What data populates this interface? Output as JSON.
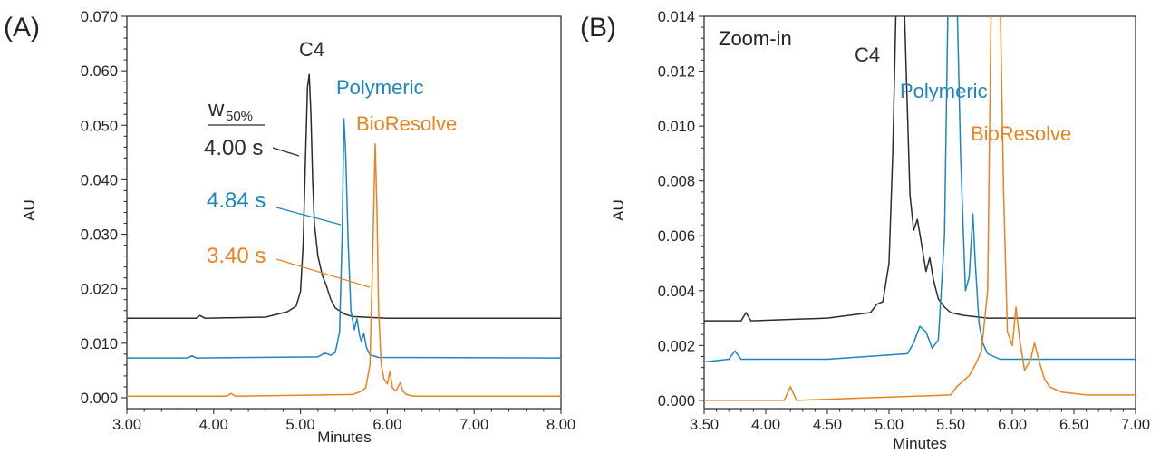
{
  "colors": {
    "c4": "#2b2b2b",
    "polymeric": "#1b86bc",
    "bioresolve": "#ec8120"
  },
  "chart_data": [
    {
      "id": "A",
      "type": "line",
      "panel_label": "(A)",
      "xlabel": "Minutes",
      "ylabel": "AU",
      "xlim": [
        3.0,
        8.0
      ],
      "ylim": [
        -0.002,
        0.07
      ],
      "xticks": [
        3.0,
        4.0,
        5.0,
        6.0,
        7.0,
        8.0
      ],
      "xtick_labels": [
        "3.00",
        "4.00",
        "5.00",
        "6.00",
        "7.00",
        "8.00"
      ],
      "yticks": [
        0.0,
        0.01,
        0.02,
        0.03,
        0.04,
        0.05,
        0.06,
        0.07
      ],
      "ytick_labels": [
        "0.000",
        "0.010",
        "0.020",
        "0.030",
        "0.040",
        "0.050",
        "0.060",
        "0.070"
      ],
      "width_header": {
        "base": "w",
        "sub": "50%"
      },
      "series": [
        {
          "name": "C4",
          "color": "#2b2b2b",
          "baseline": 0.0146,
          "x": [
            3.0,
            3.8,
            3.84,
            3.9,
            4.6,
            4.85,
            4.95,
            5.0,
            5.03,
            5.06,
            5.08,
            5.1,
            5.12,
            5.14,
            5.16,
            5.2,
            5.25,
            5.3,
            5.35,
            5.4,
            5.5,
            5.6,
            6.0,
            8.0
          ],
          "y": [
            0.0146,
            0.0146,
            0.0151,
            0.0146,
            0.0148,
            0.0158,
            0.0168,
            0.0195,
            0.028,
            0.045,
            0.057,
            0.0593,
            0.052,
            0.04,
            0.032,
            0.026,
            0.0225,
            0.0205,
            0.018,
            0.0165,
            0.0154,
            0.0149,
            0.0146,
            0.0146
          ]
        },
        {
          "name": "Polymeric",
          "color": "#1b86bc",
          "baseline": 0.0073,
          "x": [
            3.0,
            3.7,
            3.75,
            3.8,
            5.2,
            5.28,
            5.35,
            5.4,
            5.45,
            5.48,
            5.5,
            5.52,
            5.55,
            5.58,
            5.62,
            5.65,
            5.68,
            5.7,
            5.73,
            5.76,
            5.8,
            5.9,
            8.0
          ],
          "y": [
            0.0073,
            0.0073,
            0.0077,
            0.0073,
            0.0075,
            0.0082,
            0.0078,
            0.0083,
            0.012,
            0.03,
            0.0512,
            0.045,
            0.028,
            0.016,
            0.0125,
            0.0145,
            0.0115,
            0.0103,
            0.0118,
            0.0092,
            0.0079,
            0.0074,
            0.0073
          ]
        },
        {
          "name": "BioResolve",
          "color": "#ec8120",
          "baseline": 0.0003,
          "x": [
            3.0,
            4.15,
            4.2,
            4.25,
            5.6,
            5.7,
            5.75,
            5.8,
            5.83,
            5.86,
            5.88,
            5.9,
            5.93,
            5.96,
            6.0,
            6.03,
            6.06,
            6.1,
            6.15,
            6.18,
            6.22,
            6.3,
            8.0
          ],
          "y": [
            0.0003,
            0.0003,
            0.0008,
            0.0003,
            0.0006,
            0.0012,
            0.0018,
            0.006,
            0.025,
            0.0466,
            0.035,
            0.016,
            0.006,
            0.0035,
            0.0025,
            0.0048,
            0.0018,
            0.0012,
            0.0028,
            0.0012,
            0.0006,
            0.0003,
            0.0003
          ]
        }
      ],
      "annotations": [
        {
          "label": "C4",
          "series": "C4",
          "color": "#2b2b2b"
        },
        {
          "label": "Polymeric",
          "series": "Polymeric",
          "color": "#1b86bc"
        },
        {
          "label": "BioResolve",
          "series": "BioResolve",
          "color": "#ec8120"
        },
        {
          "label": "4.00 s",
          "series": "C4",
          "color": "#2b2b2b"
        },
        {
          "label": "4.84 s",
          "series": "Polymeric",
          "color": "#1b86bc"
        },
        {
          "label": "3.40 s",
          "series": "BioResolve",
          "color": "#ec8120"
        }
      ]
    },
    {
      "id": "B",
      "type": "line",
      "panel_label": "(B)",
      "inset_label": "Zoom-in",
      "xlabel": "Minutes",
      "ylabel": "AU",
      "xlim": [
        3.5,
        7.0
      ],
      "ylim": [
        -0.0003,
        0.014
      ],
      "xticks": [
        3.5,
        4.0,
        4.5,
        5.0,
        5.5,
        6.0,
        6.5,
        7.0
      ],
      "xtick_labels": [
        "3.50",
        "4.00",
        "4.50",
        "5.00",
        "5.50",
        "6.00",
        "6.50",
        "7.00"
      ],
      "yticks": [
        0.0,
        0.002,
        0.004,
        0.006,
        0.008,
        0.01,
        0.012,
        0.014
      ],
      "ytick_labels": [
        "0.000",
        "0.002",
        "0.004",
        "0.006",
        "0.008",
        "0.010",
        "0.012",
        "0.014"
      ],
      "series": [
        {
          "name": "C4",
          "color": "#2b2b2b",
          "x": [
            3.5,
            3.8,
            3.84,
            3.88,
            4.5,
            4.85,
            4.9,
            4.95,
            5.0,
            5.03,
            5.06,
            5.08,
            5.1,
            5.12,
            5.14,
            5.17,
            5.2,
            5.23,
            5.26,
            5.3,
            5.33,
            5.36,
            5.4,
            5.45,
            5.5,
            5.6,
            5.8,
            7.0
          ],
          "y": [
            0.0029,
            0.0029,
            0.0032,
            0.0029,
            0.003,
            0.0032,
            0.0035,
            0.0036,
            0.005,
            0.009,
            0.015,
            0.015,
            0.015,
            0.015,
            0.012,
            0.0075,
            0.0062,
            0.0066,
            0.0058,
            0.0047,
            0.0052,
            0.0044,
            0.0037,
            0.0034,
            0.0032,
            0.0031,
            0.003,
            0.003
          ]
        },
        {
          "name": "Polymeric",
          "color": "#1b86bc",
          "x": [
            3.5,
            3.7,
            3.75,
            3.8,
            4.5,
            5.15,
            5.2,
            5.25,
            5.3,
            5.35,
            5.4,
            5.45,
            5.48,
            5.5,
            5.52,
            5.55,
            5.58,
            5.62,
            5.65,
            5.68,
            5.7,
            5.73,
            5.76,
            5.8,
            5.9,
            7.0
          ],
          "y": [
            0.0014,
            0.0015,
            0.0018,
            0.0015,
            0.0015,
            0.0017,
            0.0021,
            0.0027,
            0.0025,
            0.0019,
            0.0022,
            0.006,
            0.015,
            0.015,
            0.015,
            0.015,
            0.009,
            0.004,
            0.0045,
            0.0068,
            0.005,
            0.0028,
            0.0021,
            0.0017,
            0.0015,
            0.0015
          ]
        },
        {
          "name": "BioResolve",
          "color": "#ec8120",
          "x": [
            3.5,
            4.15,
            4.2,
            4.25,
            5.5,
            5.55,
            5.6,
            5.65,
            5.7,
            5.75,
            5.8,
            5.83,
            5.86,
            5.88,
            5.9,
            5.93,
            5.96,
            6.0,
            6.03,
            6.06,
            6.1,
            6.15,
            6.18,
            6.22,
            6.26,
            6.3,
            6.4,
            6.6,
            7.0
          ],
          "y": [
            0.0,
            0.0,
            0.0005,
            0.0,
            0.0002,
            0.0005,
            0.0007,
            0.0009,
            0.0013,
            0.0018,
            0.004,
            0.015,
            0.015,
            0.015,
            0.015,
            0.0075,
            0.0025,
            0.002,
            0.0034,
            0.0022,
            0.0011,
            0.0015,
            0.0021,
            0.0014,
            0.0008,
            0.0005,
            0.0003,
            0.0002,
            0.0002
          ]
        }
      ],
      "annotations": [
        {
          "label": "C4",
          "series": "C4",
          "color": "#2b2b2b"
        },
        {
          "label": "Polymeric",
          "series": "Polymeric",
          "color": "#1b86bc"
        },
        {
          "label": "BioResolve",
          "series": "BioResolve",
          "color": "#ec8120"
        }
      ]
    }
  ]
}
